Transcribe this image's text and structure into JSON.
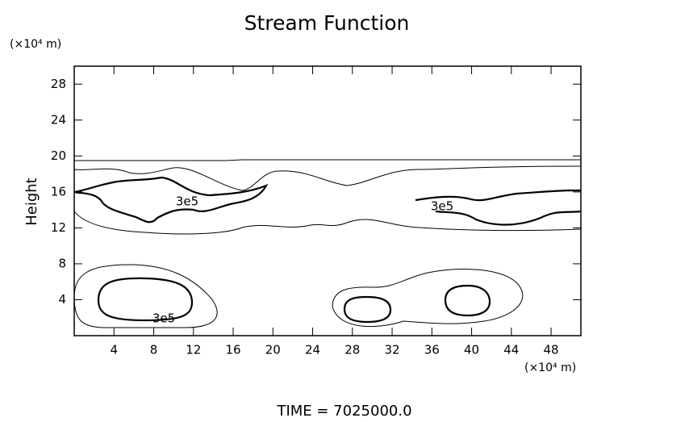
{
  "chart_data": {
    "type": "contour",
    "title": "Stream Function",
    "y_unit": "(×10⁴ m)",
    "x_unit": "(×10⁴ m)",
    "ylabel": "Height",
    "footer": "TIME  =  7025000.0",
    "xlim": [
      0,
      51
    ],
    "xticks": [
      4,
      8,
      12,
      16,
      20,
      24,
      28,
      32,
      36,
      40,
      44,
      48
    ],
    "ylim": [
      0,
      30
    ],
    "yticks": [
      4,
      8,
      12,
      16,
      20,
      24,
      28
    ],
    "contour_labels": [
      "3e5",
      "3e5",
      "3e5"
    ],
    "color": "#000000"
  }
}
